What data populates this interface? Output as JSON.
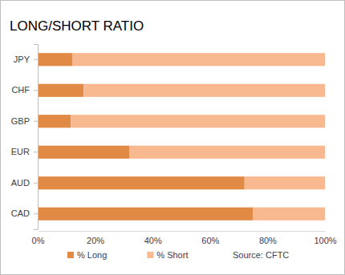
{
  "chart_data": {
    "type": "bar",
    "title": "LONG/SHORT RATIO",
    "orientation": "horizontal",
    "stacked": true,
    "categories": [
      "JPY",
      "CHF",
      "GBP",
      "EUR",
      "AUD",
      "CAD"
    ],
    "series": [
      {
        "name": "% Long",
        "color": "#e08a45",
        "values": [
          12,
          16,
          11.5,
          32,
          72,
          75
        ]
      },
      {
        "name": "% Short",
        "color": "#f9b990",
        "values": [
          88,
          84,
          88.5,
          68,
          28,
          25
        ]
      }
    ],
    "xlim": [
      0,
      100
    ],
    "xticks": [
      {
        "value": 0,
        "label": "0%"
      },
      {
        "value": 20,
        "label": "20%"
      },
      {
        "value": 40,
        "label": "40%"
      },
      {
        "value": 60,
        "label": "60%"
      },
      {
        "value": 80,
        "label": "80%"
      },
      {
        "value": 100,
        "label": "100%"
      }
    ],
    "grid": false,
    "legend": "bottom",
    "annotations": [
      "Source: CFTC"
    ]
  }
}
